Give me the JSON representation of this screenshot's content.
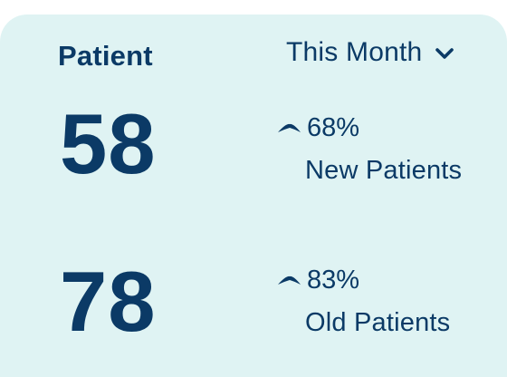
{
  "card": {
    "title": "Patient",
    "period": {
      "selected": "This Month",
      "icon": "chevron-down-icon"
    },
    "stats": [
      {
        "value": "58",
        "change": "68%",
        "change_icon": "trend-up-icon",
        "label": "New Patients"
      },
      {
        "value": "78",
        "change": "83%",
        "change_icon": "trend-up-icon",
        "label": "Old Patients"
      }
    ]
  },
  "colors": {
    "background": "#dff3f3",
    "text": "#0b3a66"
  }
}
